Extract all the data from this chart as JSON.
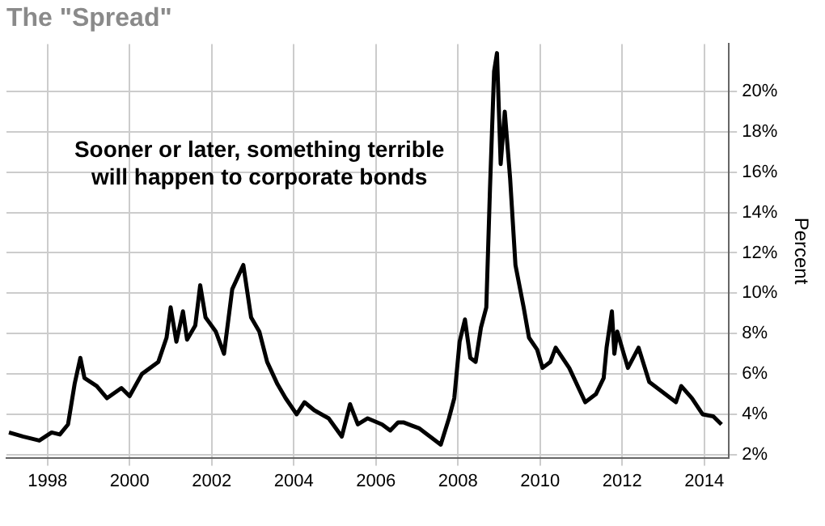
{
  "chart_data": {
    "type": "line",
    "title": "The \"Spread\"",
    "ylabel": "Percent",
    "annotations": [
      "Sooner or later, something terrible\nwill happen to corporate bonds"
    ],
    "series": [
      {
        "color": "#000000",
        "x": [
          1997.06,
          1997.4,
          1997.8,
          1998.1,
          1998.3,
          1998.5,
          1998.66,
          1998.8,
          1998.9,
          1999.2,
          1999.45,
          1999.8,
          2000.0,
          2000.3,
          2000.7,
          2000.9,
          2001.0,
          2001.14,
          2001.3,
          2001.4,
          2001.6,
          2001.72,
          2001.85,
          2002.1,
          2002.3,
          2002.5,
          2002.77,
          2002.96,
          2003.16,
          2003.35,
          2003.6,
          2003.8,
          2004.07,
          2004.26,
          2004.5,
          2004.85,
          2005.17,
          2005.37,
          2005.56,
          2005.8,
          2006.15,
          2006.35,
          2006.54,
          2006.67,
          2007.06,
          2007.32,
          2007.58,
          2007.78,
          2007.91,
          2008.04,
          2008.17,
          2008.3,
          2008.43,
          2008.56,
          2008.69,
          2008.78,
          2008.88,
          2008.95,
          2009.04,
          2009.14,
          2009.27,
          2009.4,
          2009.6,
          2009.73,
          2009.93,
          2010.06,
          2010.25,
          2010.38,
          2010.71,
          2011.1,
          2011.36,
          2011.55,
          2011.62,
          2011.75,
          2011.81,
          2011.88,
          2012.14,
          2012.4,
          2012.66,
          2013.05,
          2013.31,
          2013.44,
          2013.7,
          2013.96,
          2014.22,
          2014.42
        ],
        "values": [
          3.1,
          2.9,
          2.7,
          3.1,
          3.0,
          3.5,
          5.5,
          6.8,
          5.8,
          5.4,
          4.8,
          5.3,
          4.9,
          6.0,
          6.6,
          7.8,
          9.3,
          7.6,
          9.1,
          7.7,
          8.4,
          10.4,
          8.8,
          8.1,
          7.0,
          10.2,
          11.4,
          8.8,
          8.1,
          6.6,
          5.5,
          4.8,
          4.0,
          4.6,
          4.2,
          3.8,
          2.9,
          4.5,
          3.5,
          3.8,
          3.5,
          3.2,
          3.6,
          3.6,
          3.3,
          2.9,
          2.5,
          3.8,
          4.8,
          7.6,
          8.7,
          6.8,
          6.6,
          8.3,
          9.3,
          15.2,
          21.0,
          21.9,
          16.4,
          19.0,
          15.7,
          11.4,
          9.3,
          7.8,
          7.2,
          6.3,
          6.6,
          7.3,
          6.3,
          4.6,
          5.0,
          5.8,
          7.3,
          9.1,
          7.0,
          8.1,
          6.3,
          7.3,
          5.6,
          5.0,
          4.6,
          5.4,
          4.8,
          4.0,
          3.9,
          3.5
        ]
      }
    ],
    "xlim": [
      1997,
      2014.6
    ],
    "xticks": [
      1998,
      2000,
      2002,
      2004,
      2006,
      2008,
      2010,
      2012,
      2014
    ],
    "ylim": [
      1.85,
      22.35
    ],
    "yticks": [
      {
        "value": 2,
        "label": "2%"
      },
      {
        "value": 4,
        "label": "4%"
      },
      {
        "value": 6,
        "label": "6%"
      },
      {
        "value": 8,
        "label": "8%"
      },
      {
        "value": 10,
        "label": "10%"
      },
      {
        "value": 12,
        "label": "12%"
      },
      {
        "value": 14,
        "label": "14%"
      },
      {
        "value": 16,
        "label": "16%"
      },
      {
        "value": 18,
        "label": "18%"
      },
      {
        "value": 20,
        "label": "20%"
      }
    ],
    "grid": true,
    "legend": false,
    "marker": "none",
    "line_style": "solid"
  }
}
